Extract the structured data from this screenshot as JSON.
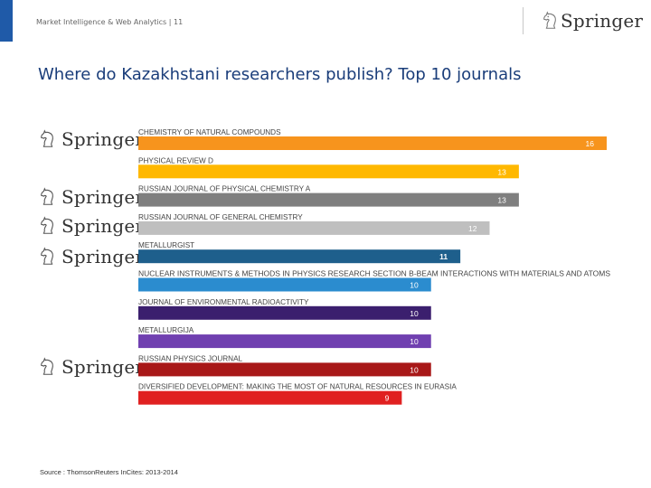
{
  "header": {
    "section_text": "Market Intelligence & Web Analytics | 11",
    "brand": "Springer"
  },
  "title": "Where do Kazakhstani researchers publish? Top 10 journals",
  "side_logos": [
    "Springer",
    "Springer",
    "Springer",
    "Springer",
    "Springer"
  ],
  "icons": {
    "brand_logo": "springer-chess-knight-icon"
  },
  "colors": {
    "title": "#1a3d7a",
    "accent": "#1f5aa8"
  },
  "chart_data": {
    "type": "bar",
    "orientation": "horizontal",
    "title": "",
    "categories": [
      "CHEMISTRY OF NATURAL COMPOUNDS",
      "PHYSICAL REVIEW D",
      "RUSSIAN JOURNAL OF PHYSICAL CHEMISTRY A",
      "RUSSIAN JOURNAL OF GENERAL CHEMISTRY",
      "METALLURGIST",
      "NUCLEAR INSTRUMENTS & METHODS IN PHYSICS RESEARCH SECTION B-BEAM INTERACTIONS WITH MATERIALS AND ATOMS",
      "JOURNAL OF ENVIRONMENTAL RADIOACTIVITY",
      "METALLURGIJA",
      "RUSSIAN PHYSICS JOURNAL",
      "DIVERSIFIED DEVELOPMENT: MAKING THE MOST OF NATURAL RESOURCES IN EURASIA"
    ],
    "values": [
      16,
      13,
      13,
      12,
      11,
      10,
      10,
      10,
      10,
      9
    ],
    "colors": [
      "#f7941d",
      "#ffb800",
      "#7f7f7f",
      "#bfbfbf",
      "#1e5f8c",
      "#2b8ccf",
      "#3b1f6e",
      "#7040b0",
      "#a81818",
      "#e02020"
    ],
    "xlim": [
      0,
      16
    ],
    "xlabel": "",
    "ylabel": ""
  },
  "source": "Source : ThomsonReuters InCites: 2013-2014"
}
